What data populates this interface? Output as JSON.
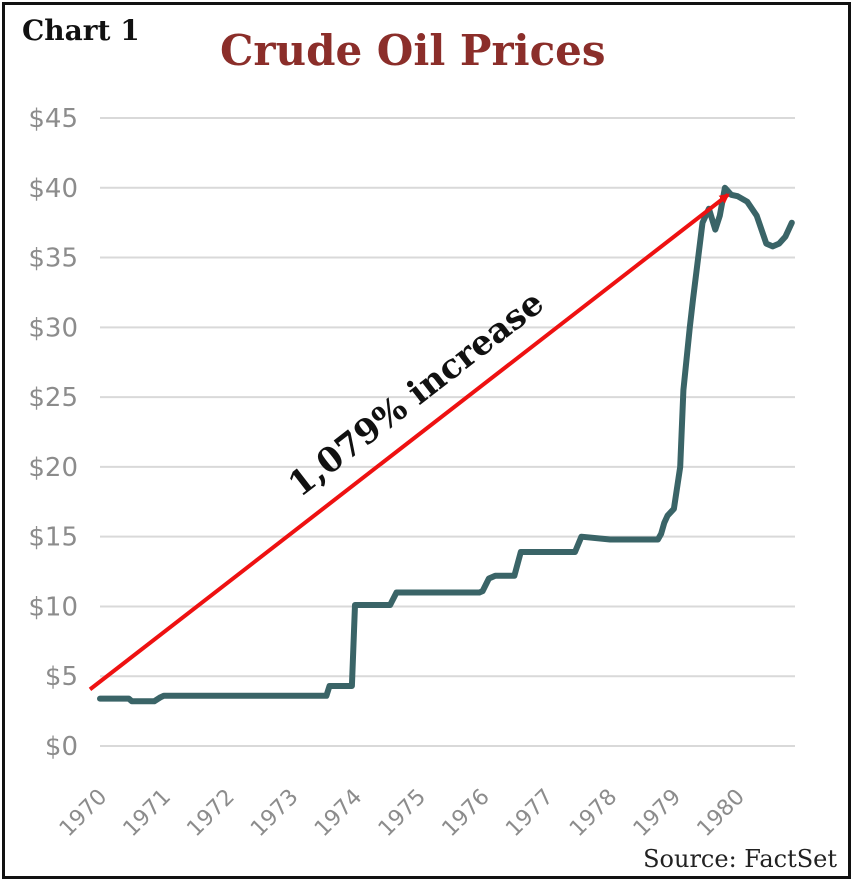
{
  "label": "Chart 1",
  "source": "Source: FactSet",
  "chart_data": {
    "type": "line",
    "title": "Crude Oil Prices",
    "xlabel": "",
    "ylabel": "",
    "xlim": [
      1970,
      1980.9
    ],
    "ylim": [
      0,
      45
    ],
    "ytick_values": [
      0,
      5,
      10,
      15,
      20,
      25,
      30,
      35,
      40,
      45
    ],
    "ytick_labels": [
      "$0",
      "$5",
      "$10",
      "$15",
      "$20",
      "$25",
      "$30",
      "$35",
      "$40",
      "$45"
    ],
    "xtick_values": [
      1970,
      1971,
      1972,
      1973,
      1974,
      1975,
      1976,
      1977,
      1978,
      1979,
      1980
    ],
    "xtick_labels": [
      "1970",
      "1971",
      "1972",
      "1973",
      "1974",
      "1975",
      "1976",
      "1977",
      "1978",
      "1979",
      "1980"
    ],
    "grid": true,
    "series": [
      {
        "color": "#3a6467",
        "x": [
          1970.0,
          1970.45,
          1970.5,
          1970.85,
          1970.95,
          1971.0,
          1973.0,
          1973.55,
          1973.6,
          1973.95,
          1974.0,
          1974.55,
          1974.65,
          1975.0,
          1975.5,
          1975.95,
          1976.0,
          1976.1,
          1976.2,
          1976.5,
          1976.6,
          1977.0,
          1977.45,
          1977.55,
          1978.0,
          1978.5,
          1978.75,
          1978.8,
          1978.85,
          1978.9,
          1979.0,
          1979.1,
          1979.15,
          1979.25,
          1979.3,
          1979.45,
          1979.55,
          1979.65,
          1979.72,
          1979.8,
          1979.9,
          1980.0,
          1980.15,
          1980.3,
          1980.45,
          1980.55,
          1980.65,
          1980.75,
          1980.85
        ],
        "y": [
          3.4,
          3.4,
          3.2,
          3.2,
          3.5,
          3.6,
          3.6,
          3.6,
          4.3,
          4.3,
          10.1,
          10.1,
          11.0,
          11.0,
          11.0,
          11.0,
          11.1,
          12.0,
          12.2,
          12.2,
          13.9,
          13.9,
          13.9,
          15.0,
          14.8,
          14.8,
          14.8,
          15.2,
          16.0,
          16.5,
          17.0,
          20.0,
          25.5,
          30.0,
          32.0,
          37.5,
          38.5,
          37.0,
          38.0,
          40.0,
          39.5,
          39.4,
          39.0,
          38.0,
          36.0,
          35.8,
          36.0,
          36.5,
          37.5
        ]
      }
    ],
    "annotations": [
      {
        "type": "arrow",
        "text": "1,079% increase",
        "color": "#ee1111",
        "from": [
          1970.0,
          4.2
        ],
        "to": [
          1979.85,
          39.5
        ]
      }
    ]
  }
}
